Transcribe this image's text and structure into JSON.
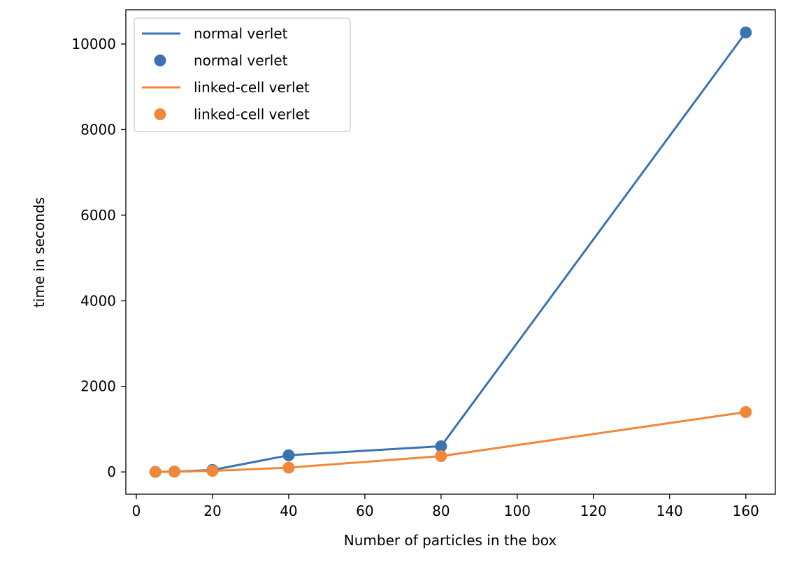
{
  "chart_data": {
    "type": "line",
    "title": "",
    "xlabel": "Number of particles in the box",
    "ylabel": "time in seconds",
    "xlim": [
      -2.75,
      167.75
    ],
    "ylim": [
      -520,
      10800
    ],
    "xticks": [
      0,
      20,
      40,
      60,
      80,
      100,
      120,
      140,
      160
    ],
    "yticks": [
      0,
      2000,
      4000,
      6000,
      8000,
      10000
    ],
    "grid": false,
    "legend_position": "top-left",
    "series": [
      {
        "name": "normal verlet",
        "kind": "line",
        "color": "#3a74b0",
        "x": [
          5,
          10,
          20,
          40,
          80,
          160
        ],
        "y": [
          2,
          8,
          45,
          390,
          600,
          10270
        ]
      },
      {
        "name": "normal verlet",
        "kind": "scatter",
        "color": "#3a74b0",
        "x": [
          5,
          10,
          20,
          40,
          80,
          160
        ],
        "y": [
          2,
          8,
          45,
          390,
          600,
          10270
        ]
      },
      {
        "name": "linked-cell verlet",
        "kind": "line",
        "color": "#f0883a",
        "x": [
          5,
          10,
          20,
          40,
          80,
          160
        ],
        "y": [
          3,
          6,
          25,
          100,
          370,
          1400
        ]
      },
      {
        "name": "linked-cell verlet",
        "kind": "scatter",
        "color": "#f0883a",
        "x": [
          5,
          10,
          20,
          40,
          80,
          160
        ],
        "y": [
          3,
          6,
          25,
          100,
          370,
          1400
        ]
      }
    ]
  }
}
